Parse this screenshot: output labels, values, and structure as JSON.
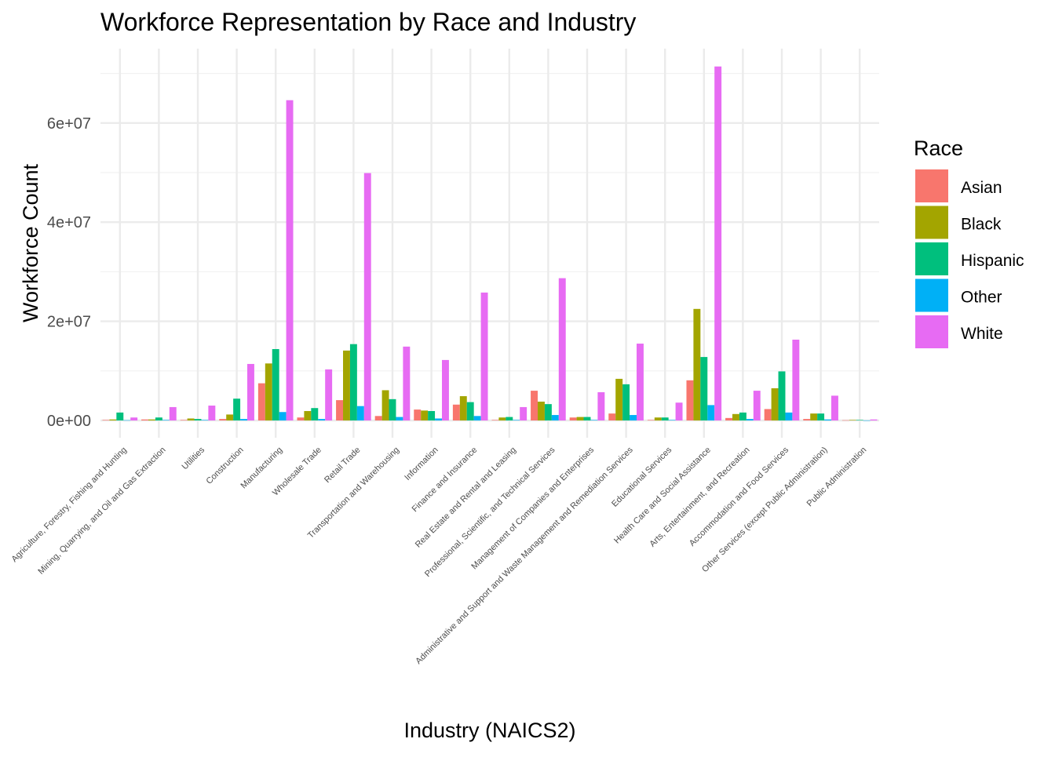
{
  "chart_data": {
    "type": "bar",
    "title": "Workforce Representation by Race and Industry",
    "xlabel": "Industry (NAICS2)",
    "ylabel": "Workforce Count",
    "ylim": [
      -2000000,
      76000000
    ],
    "yticks": [
      0,
      20000000,
      40000000,
      60000000
    ],
    "ytick_labels": [
      "0e+00",
      "2e+07",
      "4e+07",
      "6e+07"
    ],
    "grid": true,
    "legend": {
      "title": "Race",
      "position": "right"
    },
    "categories": [
      "Agriculture, Forestry, Fishing and Hunting",
      "Mining, Quarrying, and Oil and Gas Extraction",
      "Utilities",
      "Construction",
      "Manufacturing",
      "Wholesale Trade",
      "Retail Trade",
      "Transportation and Warehousing",
      "Information",
      "Finance and Insurance",
      "Real Estate and Rental and Leasing",
      "Professional, Scientific, and Technical Services",
      "Management of Companies and Enterprises",
      "Administrative and Support and Waste Management and Remediation Services",
      "Educational Services",
      "Health Care and Social Assistance",
      "Arts, Entertainment, and Recreation",
      "Accommodation and Food Services",
      "Other Services (except Public Administration)",
      "Public Administration"
    ],
    "series": [
      {
        "name": "Asian",
        "color": "#F8766D",
        "values": [
          100000,
          200000,
          100000,
          300000,
          7500000,
          600000,
          4100000,
          900000,
          2200000,
          3200000,
          100000,
          6000000,
          600000,
          1400000,
          100000,
          8100000,
          500000,
          2300000,
          300000,
          50000
        ]
      },
      {
        "name": "Black",
        "color": "#A3A500",
        "values": [
          200000,
          200000,
          400000,
          1200000,
          11500000,
          1900000,
          14100000,
          6100000,
          2000000,
          4900000,
          600000,
          3800000,
          700000,
          8400000,
          600000,
          22500000,
          1300000,
          6500000,
          1400000,
          100000
        ]
      },
      {
        "name": "Hispanic",
        "color": "#00BF7D",
        "values": [
          1600000,
          600000,
          300000,
          4400000,
          14400000,
          2500000,
          15400000,
          4300000,
          1900000,
          3700000,
          700000,
          3300000,
          700000,
          7300000,
          600000,
          12800000,
          1600000,
          9900000,
          1400000,
          100000
        ]
      },
      {
        "name": "Other",
        "color": "#00B0F6",
        "values": [
          50000,
          100000,
          100000,
          300000,
          1700000,
          300000,
          2900000,
          700000,
          400000,
          900000,
          100000,
          1100000,
          100000,
          1100000,
          100000,
          3100000,
          300000,
          1600000,
          200000,
          20000
        ]
      },
      {
        "name": "White",
        "color": "#E76BF3",
        "values": [
          600000,
          2700000,
          3000000,
          11400000,
          64600000,
          10300000,
          49900000,
          14900000,
          12200000,
          25800000,
          2700000,
          28700000,
          5700000,
          15500000,
          3600000,
          71400000,
          6000000,
          16300000,
          5000000,
          200000
        ]
      }
    ]
  }
}
